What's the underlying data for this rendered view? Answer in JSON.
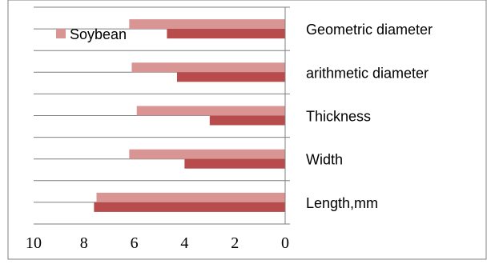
{
  "chart_data": {
    "type": "bar",
    "orientation": "horizontal",
    "x_axis_reversed": true,
    "categories": [
      "Geometric diameter",
      "arithmetic diameter",
      "Thickness",
      "Width",
      "Length,mm"
    ],
    "series": [
      {
        "name": "Soybean",
        "values": [
          6.2,
          6.1,
          5.9,
          6.2,
          7.5
        ],
        "color": "#d99594"
      },
      {
        "values": [
          4.7,
          4.3,
          3.0,
          4.0,
          7.6
        ],
        "color": "#b84b4b"
      }
    ],
    "xlim": [
      0,
      10
    ],
    "x_ticks": [
      "10",
      "8",
      "6",
      "4",
      "2",
      "0"
    ],
    "grid": true,
    "legend": "top-left",
    "title": "",
    "xlabel": "",
    "ylabel": ""
  },
  "colors": {
    "border": "#7f7f7f",
    "grid": "#7f7f7f",
    "series_1": "#d99594",
    "series_2": "#b84b4b"
  }
}
